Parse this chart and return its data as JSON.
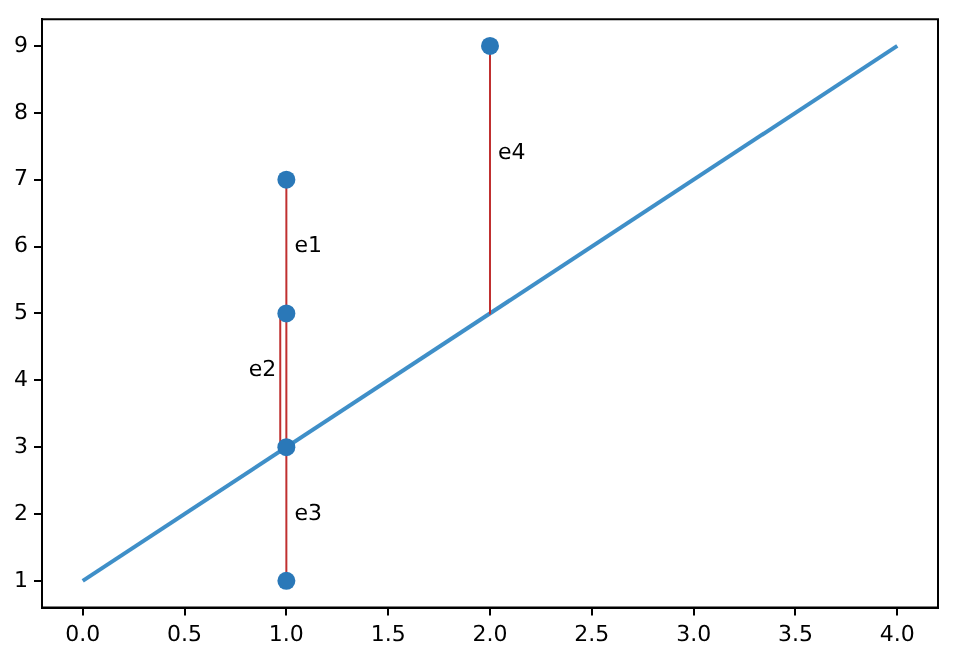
{
  "chart_data": {
    "type": "line",
    "xlim": [
      -0.2,
      4.2
    ],
    "ylim": [
      0.6,
      9.4
    ],
    "xticks": [
      {
        "value": 0,
        "label": "0.0"
      },
      {
        "value": 0.5,
        "label": "0.5"
      },
      {
        "value": 1,
        "label": "1.0"
      },
      {
        "value": 1.5,
        "label": "1.5"
      },
      {
        "value": 2,
        "label": "2.0"
      },
      {
        "value": 2.5,
        "label": "2.5"
      },
      {
        "value": 3,
        "label": "3.0"
      },
      {
        "value": 3.5,
        "label": "3.5"
      },
      {
        "value": 4,
        "label": "4.0"
      }
    ],
    "yticks": [
      1,
      2,
      3,
      4,
      5,
      6,
      7,
      8,
      9
    ],
    "grid": false,
    "legend": false,
    "series": [
      {
        "color": "#3f8fc8",
        "x": [
          0,
          4
        ],
        "values": [
          1,
          9
        ],
        "marker": "none"
      },
      {
        "color": "#c03030",
        "x": [
          1,
          1
        ],
        "values": [
          7,
          3
        ],
        "marker": "none"
      },
      {
        "color": "#c03030",
        "x": [
          0.97,
          0.97
        ],
        "values": [
          5,
          3
        ],
        "marker": "none"
      },
      {
        "color": "#c03030",
        "x": [
          1,
          1
        ],
        "values": [
          3,
          1
        ],
        "marker": "none"
      },
      {
        "color": "#c03030",
        "x": [
          2,
          2
        ],
        "values": [
          9,
          5
        ],
        "marker": "none"
      },
      {
        "type": "scatter",
        "color": "#2a78b8",
        "x": [
          1,
          1,
          1,
          1,
          2
        ],
        "values": [
          7,
          5,
          3,
          1,
          9
        ],
        "marker": "circle"
      }
    ],
    "annotations": [
      {
        "text": "e1",
        "x": 1.02,
        "y": 6
      },
      {
        "text": "e2",
        "x": 0.97,
        "y": 4.15
      },
      {
        "text": "e3",
        "x": 1.02,
        "y": 2
      },
      {
        "text": "e4",
        "x": 2.02,
        "y": 7.4
      }
    ]
  }
}
